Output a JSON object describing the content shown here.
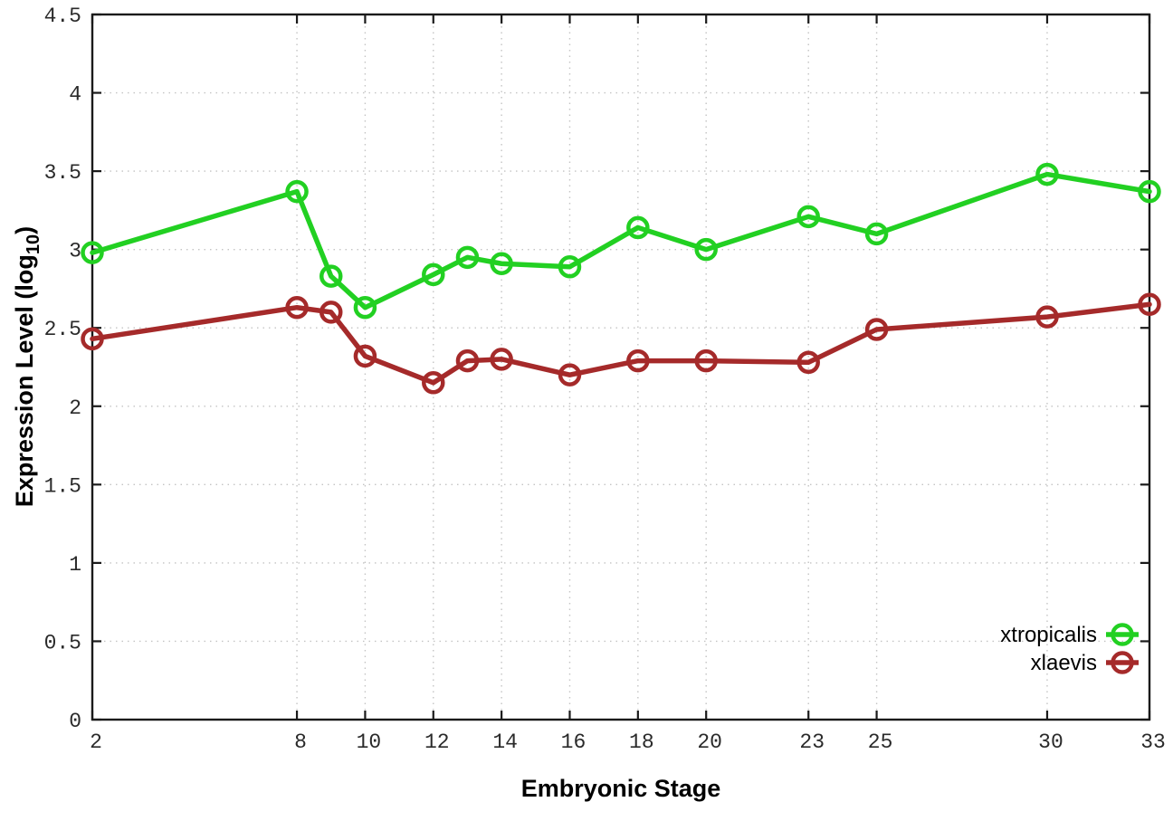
{
  "figure": {
    "background": "#ffffff",
    "xlabel": "Embryonic Stage",
    "ylabel": {
      "main": "Expression Level (log",
      "sub": "10",
      "close": ")"
    }
  },
  "legend": {
    "entries": [
      {
        "label": "xtropicalis",
        "color": "#22d022",
        "marker": "open-circle"
      },
      {
        "label": "xlaevis",
        "color": "#a52a2a",
        "marker": "open-circle"
      }
    ],
    "position": "bottom-right"
  },
  "colors": {
    "series_green": "#22d022",
    "series_red": "#a52a2a",
    "grid": "#c4c4c4",
    "axis": "#1a1a1a",
    "background": "#ffffff"
  },
  "chart_data": {
    "type": "line",
    "title": "",
    "xlabel": "Embryonic Stage",
    "ylabel": "Expression Level (log10)",
    "x": [
      2,
      8,
      9,
      10,
      12,
      13,
      14,
      16,
      18,
      20,
      23,
      25,
      30,
      33
    ],
    "series": [
      {
        "name": "xtropicalis",
        "color": "#22d022",
        "values": [
          2.98,
          3.37,
          2.83,
          2.63,
          2.84,
          2.95,
          2.91,
          2.89,
          3.14,
          3.0,
          3.21,
          3.1,
          3.48,
          3.37
        ]
      },
      {
        "name": "xlaevis",
        "color": "#a52a2a",
        "values": [
          2.43,
          2.63,
          2.6,
          2.32,
          2.15,
          2.29,
          2.3,
          2.2,
          2.29,
          2.29,
          2.28,
          2.49,
          2.57,
          2.65
        ]
      }
    ],
    "xlim": [
      2,
      33
    ],
    "ylim": [
      0,
      4.5
    ],
    "xticks": [
      2,
      8,
      10,
      12,
      14,
      16,
      18,
      20,
      23,
      25,
      30,
      33
    ],
    "xtick_labels": [
      "2",
      "8",
      "10",
      "12",
      "14",
      "16",
      "18",
      "20",
      "23",
      "25",
      "30",
      "33"
    ],
    "yticks": [
      0,
      0.5,
      1,
      1.5,
      2,
      2.5,
      3,
      3.5,
      4,
      4.5
    ],
    "ytick_labels": [
      "0",
      "0.5",
      "1",
      "1.5",
      "2",
      "2.5",
      "3",
      "3.5",
      "4",
      "4.5"
    ],
    "grid": true,
    "grid_style": "dotted",
    "legend_position": "bottom-right",
    "marker": "open-circle"
  }
}
